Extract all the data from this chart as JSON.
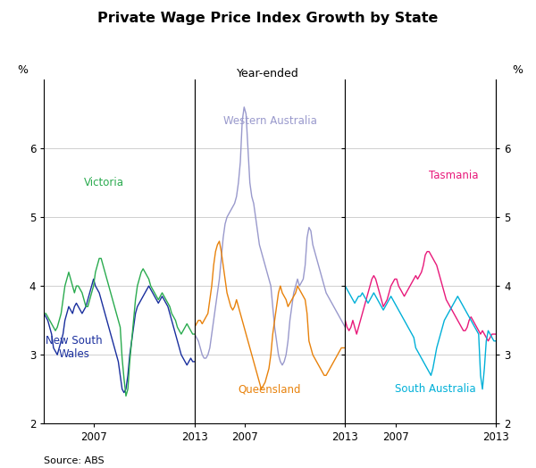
{
  "title": "Private Wage Price Index Growth by State",
  "subtitle": "Year-ended",
  "ylabel_left": "%",
  "ylabel_right": "%",
  "source": "Source: ABS",
  "ylim": [
    2,
    7
  ],
  "yticks": [
    2,
    3,
    4,
    5,
    6
  ],
  "colors": {
    "nsw": "#1a2f9e",
    "vic": "#2aab4f",
    "wa": "#9999cc",
    "qld": "#e8820c",
    "tas": "#e8197a",
    "sa": "#00b0d8"
  },
  "panel1_label_nsw": "New South\nWales",
  "panel1_label_vic": "Victoria",
  "panel2_label_wa": "Western Australia",
  "panel2_label_qld": "Queensland",
  "panel3_label_tas": "Tasmania",
  "panel3_label_sa": "South Australia",
  "nsw": [
    3.6,
    3.55,
    3.5,
    3.4,
    3.3,
    3.1,
    3.05,
    3.0,
    3.1,
    3.2,
    3.3,
    3.5,
    3.6,
    3.7,
    3.65,
    3.6,
    3.7,
    3.75,
    3.7,
    3.65,
    3.6,
    3.65,
    3.7,
    3.8,
    3.9,
    4.0,
    4.1,
    4.0,
    3.95,
    3.9,
    3.8,
    3.7,
    3.6,
    3.5,
    3.4,
    3.3,
    3.2,
    3.1,
    3.0,
    2.9,
    2.7,
    2.5,
    2.45,
    2.5,
    2.7,
    3.0,
    3.2,
    3.4,
    3.6,
    3.7,
    3.75,
    3.8,
    3.85,
    3.9,
    3.95,
    4.0,
    3.95,
    3.9,
    3.85,
    3.8,
    3.75,
    3.8,
    3.85,
    3.8,
    3.75,
    3.7,
    3.6,
    3.5,
    3.4,
    3.3,
    3.2,
    3.1,
    3.0,
    2.95,
    2.9,
    2.85,
    2.9,
    2.95,
    2.9,
    2.9
  ],
  "vic": [
    3.6,
    3.6,
    3.55,
    3.5,
    3.45,
    3.4,
    3.35,
    3.4,
    3.5,
    3.6,
    3.8,
    4.0,
    4.1,
    4.2,
    4.1,
    4.0,
    3.9,
    4.0,
    4.0,
    3.95,
    3.9,
    3.8,
    3.7,
    3.7,
    3.8,
    3.9,
    4.0,
    4.2,
    4.3,
    4.4,
    4.4,
    4.3,
    4.2,
    4.1,
    4.0,
    3.9,
    3.8,
    3.7,
    3.6,
    3.5,
    3.4,
    2.95,
    2.65,
    2.4,
    2.5,
    2.9,
    3.2,
    3.5,
    3.8,
    4.0,
    4.1,
    4.2,
    4.25,
    4.2,
    4.15,
    4.1,
    4.0,
    3.95,
    3.9,
    3.85,
    3.8,
    3.85,
    3.9,
    3.85,
    3.8,
    3.75,
    3.7,
    3.6,
    3.55,
    3.5,
    3.4,
    3.35,
    3.3,
    3.35,
    3.4,
    3.45,
    3.4,
    3.35,
    3.3,
    3.3
  ],
  "wa": [
    3.3,
    3.25,
    3.2,
    3.1,
    3.0,
    2.95,
    2.95,
    3.0,
    3.1,
    3.3,
    3.5,
    3.7,
    3.9,
    4.1,
    4.4,
    4.7,
    4.9,
    5.0,
    5.05,
    5.1,
    5.15,
    5.2,
    5.3,
    5.5,
    5.8,
    6.4,
    6.6,
    6.5,
    6.0,
    5.5,
    5.3,
    5.2,
    5.0,
    4.8,
    4.6,
    4.5,
    4.4,
    4.3,
    4.2,
    4.1,
    4.0,
    3.7,
    3.4,
    3.2,
    3.0,
    2.9,
    2.85,
    2.9,
    3.0,
    3.2,
    3.5,
    3.7,
    3.9,
    4.0,
    4.1,
    4.0,
    4.05,
    4.1,
    4.3,
    4.7,
    4.85,
    4.8,
    4.6,
    4.5,
    4.4,
    4.3,
    4.2,
    4.1,
    4.0,
    3.9,
    3.85,
    3.8,
    3.75,
    3.7,
    3.65,
    3.6,
    3.55,
    3.5,
    3.45,
    3.4
  ],
  "qld": [
    3.4,
    3.45,
    3.5,
    3.5,
    3.45,
    3.5,
    3.55,
    3.6,
    3.8,
    4.0,
    4.3,
    4.5,
    4.6,
    4.65,
    4.5,
    4.3,
    4.1,
    3.9,
    3.8,
    3.7,
    3.65,
    3.7,
    3.8,
    3.7,
    3.6,
    3.5,
    3.4,
    3.3,
    3.2,
    3.1,
    3.0,
    2.9,
    2.8,
    2.7,
    2.6,
    2.5,
    2.55,
    2.6,
    2.7,
    2.8,
    3.0,
    3.3,
    3.5,
    3.7,
    3.9,
    4.0,
    3.9,
    3.85,
    3.8,
    3.7,
    3.75,
    3.8,
    3.85,
    3.9,
    4.0,
    3.95,
    3.9,
    3.85,
    3.8,
    3.6,
    3.2,
    3.1,
    3.0,
    2.95,
    2.9,
    2.85,
    2.8,
    2.75,
    2.7,
    2.7,
    2.75,
    2.8,
    2.85,
    2.9,
    2.95,
    3.0,
    3.05,
    3.1,
    3.1,
    3.1
  ],
  "tas": [
    3.5,
    3.4,
    3.35,
    3.4,
    3.5,
    3.4,
    3.3,
    3.4,
    3.5,
    3.6,
    3.7,
    3.8,
    3.9,
    4.0,
    4.1,
    4.15,
    4.1,
    4.0,
    3.9,
    3.8,
    3.7,
    3.75,
    3.8,
    3.9,
    4.0,
    4.05,
    4.1,
    4.1,
    4.0,
    3.95,
    3.9,
    3.85,
    3.9,
    3.95,
    4.0,
    4.05,
    4.1,
    4.15,
    4.1,
    4.15,
    4.2,
    4.3,
    4.45,
    4.5,
    4.5,
    4.45,
    4.4,
    4.35,
    4.3,
    4.2,
    4.1,
    4.0,
    3.9,
    3.8,
    3.75,
    3.7,
    3.65,
    3.6,
    3.55,
    3.5,
    3.45,
    3.4,
    3.35,
    3.35,
    3.4,
    3.5,
    3.55,
    3.5,
    3.45,
    3.4,
    3.35,
    3.3,
    3.35,
    3.3,
    3.25,
    3.2,
    3.25,
    3.3,
    3.3,
    3.3
  ],
  "sa": [
    4.0,
    3.95,
    3.9,
    3.85,
    3.8,
    3.75,
    3.8,
    3.85,
    3.85,
    3.9,
    3.85,
    3.8,
    3.75,
    3.8,
    3.85,
    3.9,
    3.85,
    3.8,
    3.75,
    3.7,
    3.65,
    3.7,
    3.75,
    3.8,
    3.85,
    3.8,
    3.75,
    3.7,
    3.65,
    3.6,
    3.55,
    3.5,
    3.45,
    3.4,
    3.35,
    3.3,
    3.25,
    3.1,
    3.05,
    3.0,
    2.95,
    2.9,
    2.85,
    2.8,
    2.75,
    2.7,
    2.8,
    2.95,
    3.1,
    3.2,
    3.3,
    3.4,
    3.5,
    3.55,
    3.6,
    3.65,
    3.7,
    3.75,
    3.8,
    3.85,
    3.8,
    3.75,
    3.7,
    3.65,
    3.6,
    3.55,
    3.5,
    3.45,
    3.4,
    3.35,
    3.3,
    2.7,
    2.5,
    2.8,
    3.2,
    3.35,
    3.3,
    3.25,
    3.2,
    3.2
  ]
}
